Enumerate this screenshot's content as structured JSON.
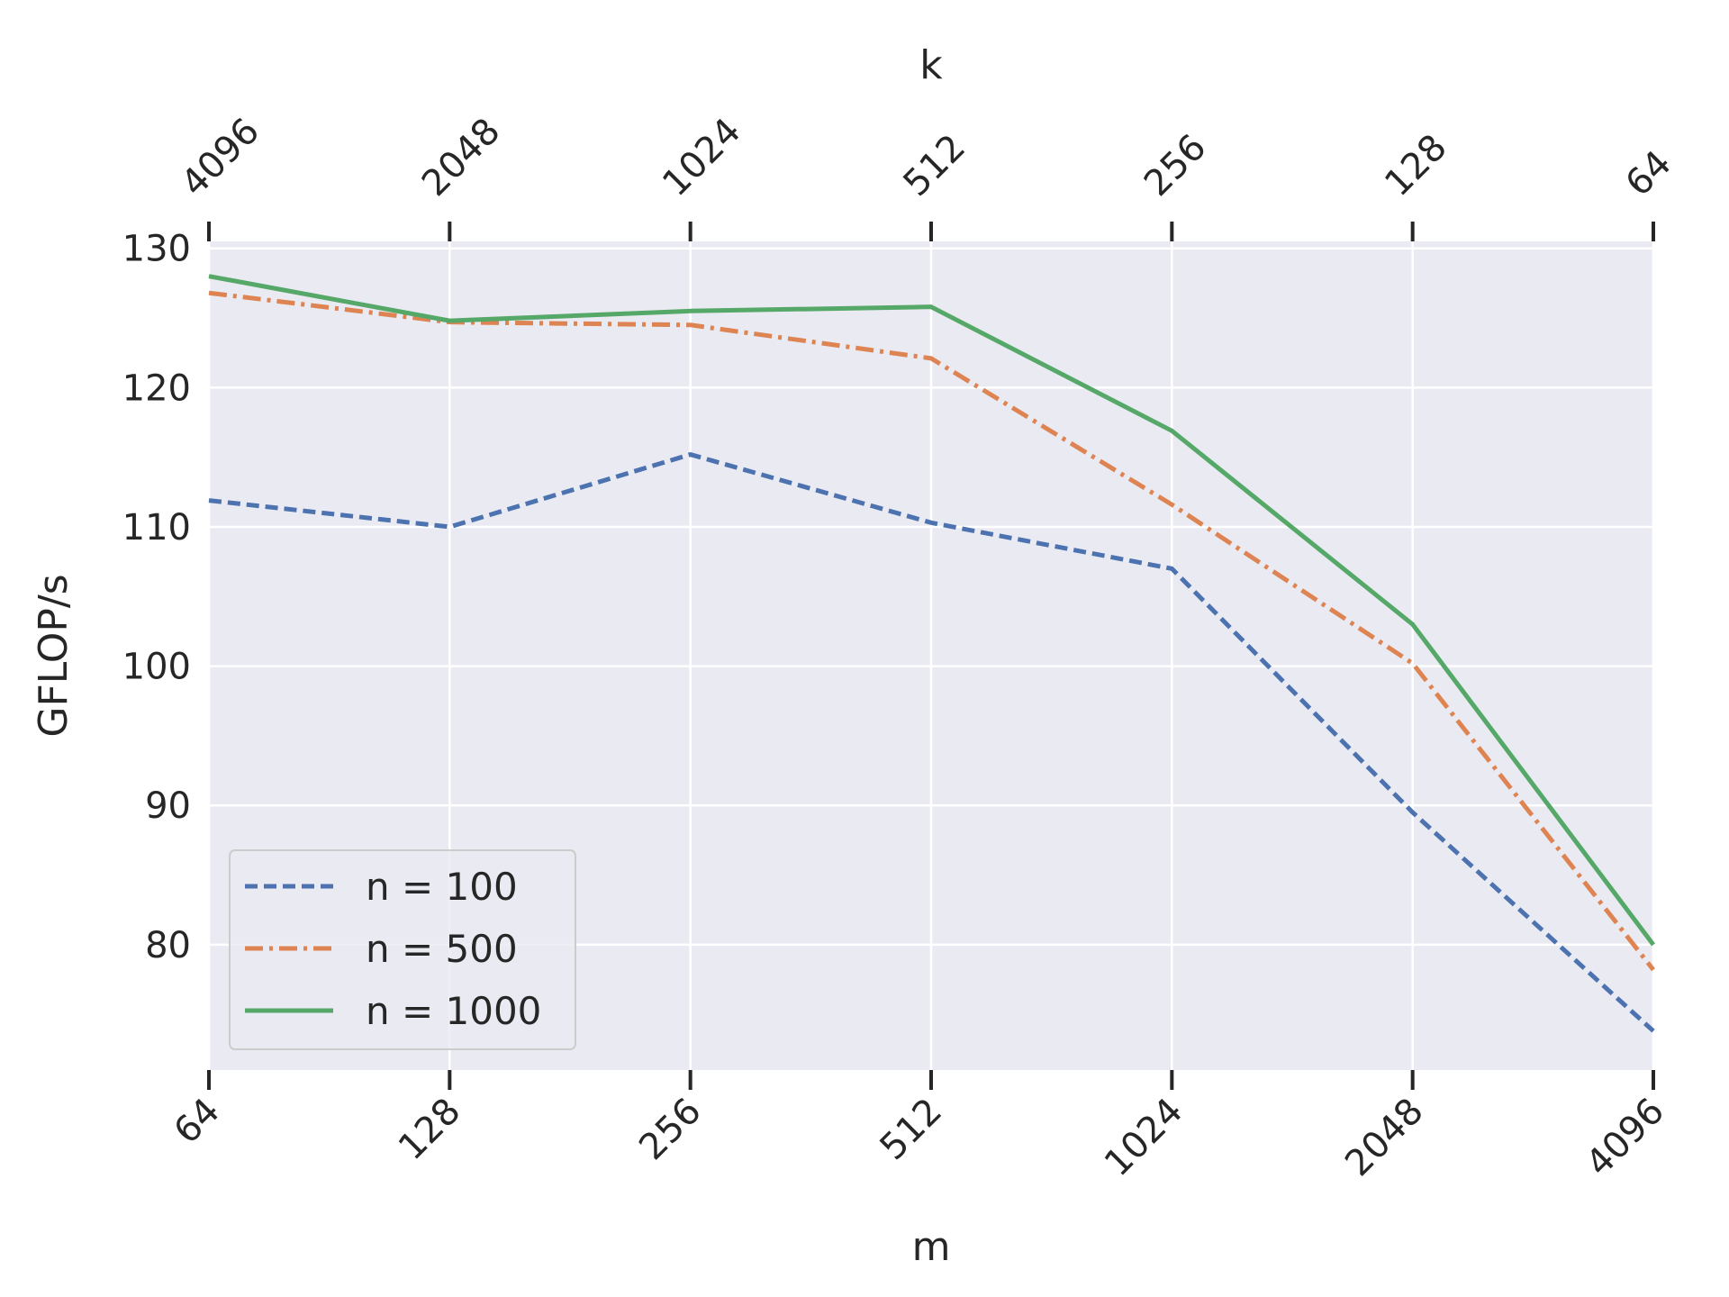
{
  "chart_data": {
    "type": "line",
    "title": "",
    "xlabel": "m",
    "ylabel": "GFLOP/s",
    "top_xlabel": "k",
    "x_scale": "log2",
    "categories": [
      "64",
      "128",
      "256",
      "512",
      "1024",
      "2048",
      "4096"
    ],
    "top_categories": [
      "4096",
      "2048",
      "1024",
      "512",
      "256",
      "128",
      "64"
    ],
    "ylim": [
      71,
      130.5
    ],
    "yticks": [
      "80",
      "90",
      "100",
      "110",
      "120",
      "130"
    ],
    "ytick_values": [
      80,
      90,
      100,
      110,
      120,
      130
    ],
    "grid": true,
    "legend_position": "lower-left",
    "series": [
      {
        "name": "n = 100",
        "values": [
          111.9,
          110.0,
          115.2,
          110.3,
          107.0,
          89.5,
          73.8
        ],
        "color": "#4c72b0",
        "style": "dashed"
      },
      {
        "name": "n = 500",
        "values": [
          126.8,
          124.7,
          124.5,
          122.1,
          111.6,
          100.2,
          78.2
        ],
        "color": "#dd8452",
        "style": "dashdot"
      },
      {
        "name": "n = 1000",
        "values": [
          128.0,
          124.8,
          125.5,
          125.8,
          116.9,
          103.0,
          80.0
        ],
        "color": "#55a868",
        "style": "solid"
      }
    ],
    "colors": {
      "plot_background": "#eaeaf2",
      "grid": "#ffffff",
      "text": "#262626"
    }
  }
}
